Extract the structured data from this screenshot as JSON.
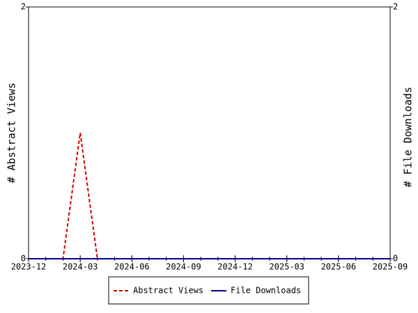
{
  "chart_data": {
    "type": "line",
    "x": [
      "2023-12",
      "2024-01",
      "2024-02",
      "2024-03",
      "2024-04",
      "2024-05",
      "2024-06",
      "2024-07",
      "2024-08",
      "2024-09",
      "2024-10",
      "2024-11",
      "2024-12",
      "2025-01",
      "2025-02",
      "2025-03",
      "2025-04",
      "2025-05",
      "2025-06",
      "2025-07",
      "2025-08",
      "2025-09"
    ],
    "series": [
      {
        "name": "Abstract Views",
        "color": "#cc0000",
        "dashed": true,
        "values": [
          0,
          0,
          0,
          1,
          0,
          0,
          0,
          0,
          0,
          0,
          0,
          0,
          0,
          0,
          0,
          0,
          0,
          0,
          0,
          0,
          0,
          0
        ]
      },
      {
        "name": "File Downloads",
        "color": "#00008b",
        "axis": "y2",
        "values": [
          0,
          0,
          0,
          0,
          0,
          0,
          0,
          0,
          0,
          0,
          0,
          0,
          0,
          0,
          0,
          0,
          0,
          0,
          0,
          0,
          0,
          0
        ]
      }
    ],
    "xlim": [
      "2023-12",
      "2025-09"
    ],
    "xticks": [
      "2023-12",
      "2024-03",
      "2024-06",
      "2024-09",
      "2024-12",
      "2025-03",
      "2025-06",
      "2025-09"
    ],
    "ylim": [
      0,
      2
    ],
    "yticks": [
      0,
      2
    ],
    "y2lim": [
      0,
      2
    ],
    "y2ticks": [
      0,
      2
    ],
    "ylabel": "# Abstract Views",
    "y2label": "# File Downloads",
    "legend": "bottom"
  }
}
